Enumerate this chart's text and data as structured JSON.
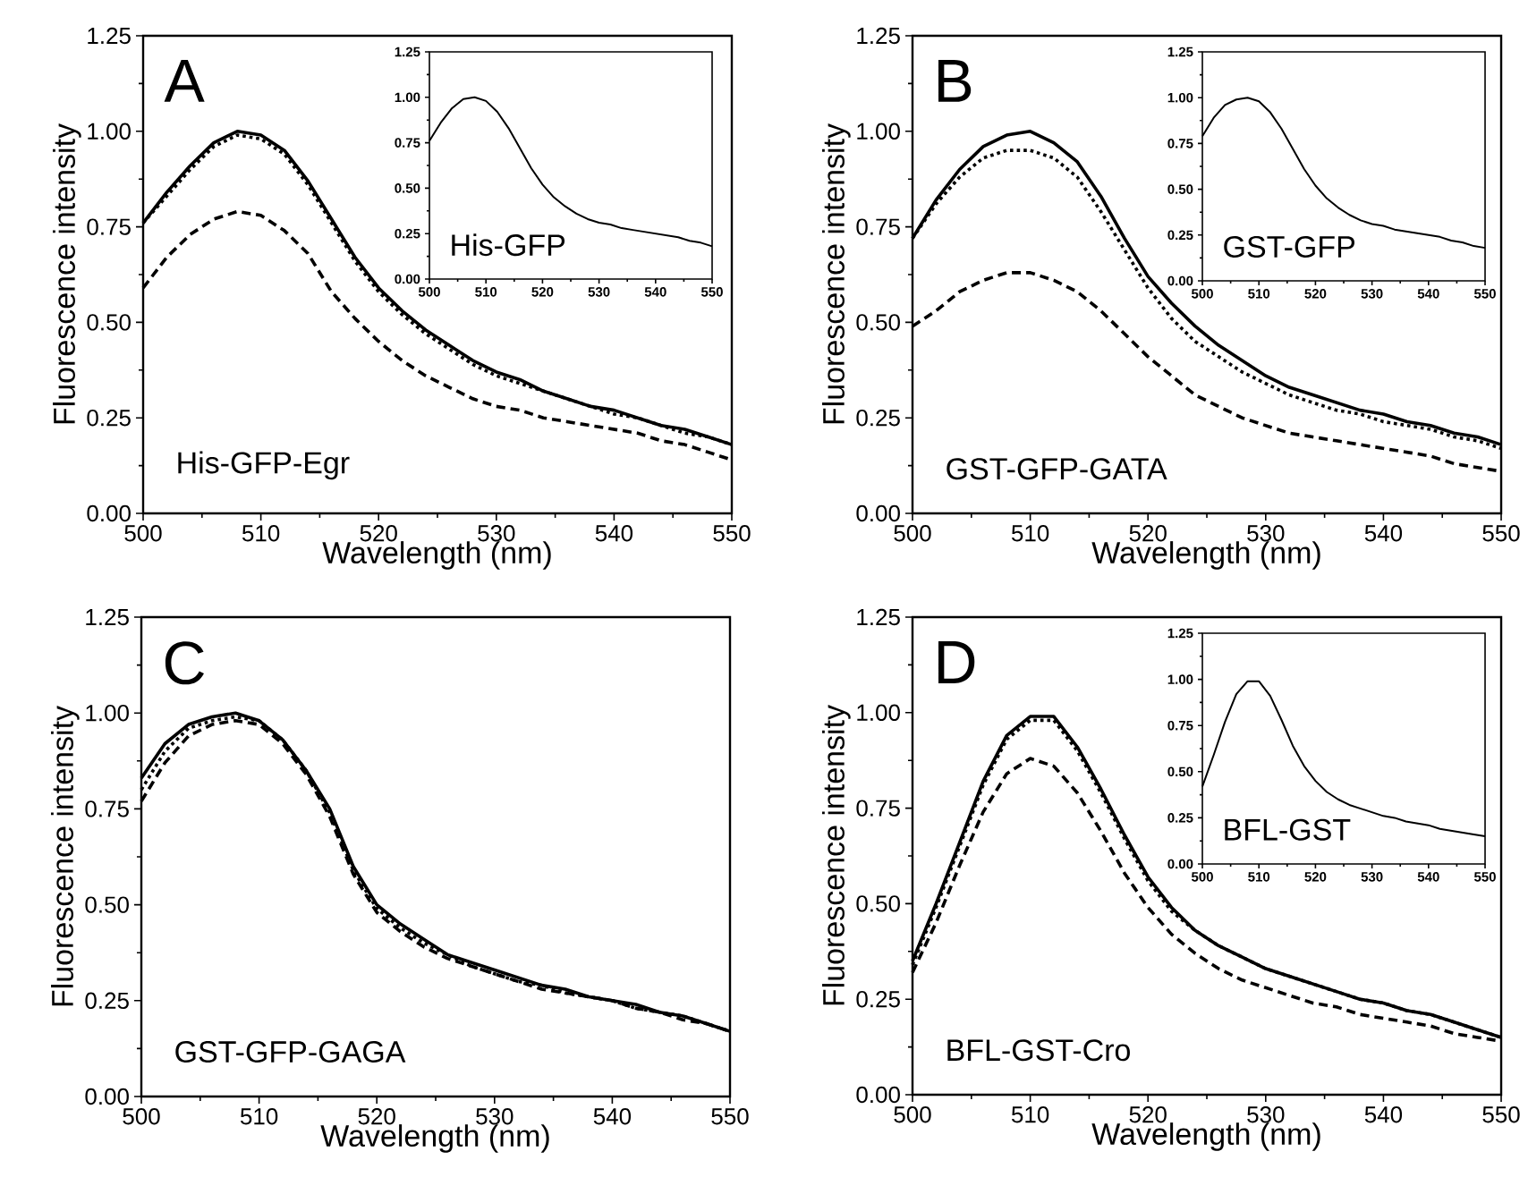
{
  "chart_data": [
    {
      "type": "line",
      "xlabel": "Wavelength (nm)",
      "ylabel": "Fluorescence intensity",
      "annotations": [
        "A",
        "His-GFP-Egr"
      ],
      "xlim": [
        500,
        550
      ],
      "ylim": [
        0,
        1.25
      ],
      "xticks": [
        500,
        510,
        520,
        530,
        540,
        550
      ],
      "yticks": [
        {
          "value": 0,
          "label": "0.00"
        },
        {
          "value": 0.25,
          "label": "0.25"
        },
        {
          "value": 0.5,
          "label": "0.50"
        },
        {
          "value": 0.75,
          "label": "0.75"
        },
        {
          "value": 1,
          "label": "1.00"
        },
        {
          "value": 1.25,
          "label": "1.25"
        }
      ],
      "x": [
        500,
        502,
        504,
        506,
        508,
        510,
        512,
        514,
        516,
        518,
        520,
        522,
        524,
        526,
        528,
        530,
        532,
        534,
        536,
        538,
        540,
        542,
        544,
        546,
        548,
        550
      ],
      "series": [
        {
          "color": "#000000",
          "line_style": "solid",
          "values": [
            0.76,
            0.84,
            0.91,
            0.97,
            1.0,
            0.99,
            0.95,
            0.87,
            0.77,
            0.67,
            0.59,
            0.53,
            0.48,
            0.44,
            0.4,
            0.37,
            0.35,
            0.32,
            0.3,
            0.28,
            0.27,
            0.25,
            0.23,
            0.22,
            0.2,
            0.18
          ]
        },
        {
          "color": "#000000",
          "line_style": "dotted",
          "values": [
            0.76,
            0.83,
            0.9,
            0.96,
            0.99,
            0.98,
            0.94,
            0.86,
            0.76,
            0.66,
            0.58,
            0.52,
            0.47,
            0.43,
            0.39,
            0.36,
            0.34,
            0.32,
            0.3,
            0.28,
            0.26,
            0.25,
            0.23,
            0.21,
            0.2,
            0.18
          ]
        },
        {
          "color": "#000000",
          "line_style": "dashed",
          "values": [
            0.59,
            0.67,
            0.73,
            0.77,
            0.79,
            0.78,
            0.74,
            0.68,
            0.58,
            0.51,
            0.45,
            0.4,
            0.36,
            0.33,
            0.3,
            0.28,
            0.27,
            0.25,
            0.24,
            0.23,
            0.22,
            0.21,
            0.19,
            0.18,
            0.16,
            0.14
          ]
        }
      ]
    },
    {
      "type": "line",
      "annotations": [
        "His-GFP"
      ],
      "xlim": [
        500,
        550
      ],
      "ylim": [
        0,
        1.25
      ],
      "xticks": [
        500,
        510,
        520,
        530,
        540,
        550
      ],
      "yticks": [
        {
          "value": 0,
          "label": "0.00"
        },
        {
          "value": 0.25,
          "label": "0.25"
        },
        {
          "value": 0.5,
          "label": "0.50"
        },
        {
          "value": 0.75,
          "label": "0.75"
        },
        {
          "value": 1,
          "label": "1.00"
        },
        {
          "value": 1.25,
          "label": "1.25"
        }
      ],
      "x": [
        500,
        502,
        504,
        506,
        508,
        510,
        512,
        514,
        516,
        518,
        520,
        522,
        524,
        526,
        528,
        530,
        532,
        534,
        536,
        538,
        540,
        542,
        544,
        546,
        548,
        550
      ],
      "series": [
        {
          "color": "#000000",
          "line_style": "solid",
          "values": [
            0.76,
            0.86,
            0.94,
            0.99,
            1.0,
            0.98,
            0.92,
            0.83,
            0.72,
            0.61,
            0.52,
            0.45,
            0.4,
            0.36,
            0.33,
            0.31,
            0.3,
            0.28,
            0.27,
            0.26,
            0.25,
            0.24,
            0.23,
            0.21,
            0.2,
            0.18
          ]
        }
      ]
    },
    {
      "type": "line",
      "xlabel": "Wavelength (nm)",
      "ylabel": "Fluorescence intensity",
      "annotations": [
        "B",
        "GST-GFP-GATA"
      ],
      "xlim": [
        500,
        550
      ],
      "ylim": [
        0,
        1.25
      ],
      "xticks": [
        500,
        510,
        520,
        530,
        540,
        550
      ],
      "yticks": [
        {
          "value": 0,
          "label": "0.00"
        },
        {
          "value": 0.25,
          "label": "0.25"
        },
        {
          "value": 0.5,
          "label": "0.50"
        },
        {
          "value": 0.75,
          "label": "0.75"
        },
        {
          "value": 1,
          "label": "1.00"
        },
        {
          "value": 1.25,
          "label": "1.25"
        }
      ],
      "x": [
        500,
        502,
        504,
        506,
        508,
        510,
        512,
        514,
        516,
        518,
        520,
        522,
        524,
        526,
        528,
        530,
        532,
        534,
        536,
        538,
        540,
        542,
        544,
        546,
        548,
        550
      ],
      "series": [
        {
          "color": "#000000",
          "line_style": "solid",
          "values": [
            0.72,
            0.82,
            0.9,
            0.96,
            0.99,
            1.0,
            0.97,
            0.92,
            0.83,
            0.72,
            0.62,
            0.55,
            0.49,
            0.44,
            0.4,
            0.36,
            0.33,
            0.31,
            0.29,
            0.27,
            0.26,
            0.24,
            0.23,
            0.21,
            0.2,
            0.18
          ]
        },
        {
          "color": "#000000",
          "line_style": "dotted",
          "values": [
            0.72,
            0.81,
            0.88,
            0.93,
            0.95,
            0.95,
            0.93,
            0.88,
            0.79,
            0.69,
            0.59,
            0.51,
            0.45,
            0.41,
            0.37,
            0.34,
            0.31,
            0.29,
            0.27,
            0.26,
            0.24,
            0.23,
            0.22,
            0.2,
            0.19,
            0.17
          ]
        },
        {
          "color": "#000000",
          "line_style": "dashed",
          "values": [
            0.49,
            0.53,
            0.58,
            0.61,
            0.63,
            0.63,
            0.61,
            0.58,
            0.53,
            0.47,
            0.41,
            0.36,
            0.31,
            0.28,
            0.25,
            0.23,
            0.21,
            0.2,
            0.19,
            0.18,
            0.17,
            0.16,
            0.15,
            0.13,
            0.12,
            0.11
          ]
        }
      ]
    },
    {
      "type": "line",
      "annotations": [
        "GST-GFP"
      ],
      "xlim": [
        500,
        550
      ],
      "ylim": [
        0,
        1.25
      ],
      "xticks": [
        500,
        510,
        520,
        530,
        540,
        550
      ],
      "yticks": [
        {
          "value": 0,
          "label": "0.00"
        },
        {
          "value": 0.25,
          "label": "0.25"
        },
        {
          "value": 0.5,
          "label": "0.50"
        },
        {
          "value": 0.75,
          "label": "0.75"
        },
        {
          "value": 1,
          "label": "1.00"
        },
        {
          "value": 1.25,
          "label": "1.25"
        }
      ],
      "x": [
        500,
        502,
        504,
        506,
        508,
        510,
        512,
        514,
        516,
        518,
        520,
        522,
        524,
        526,
        528,
        530,
        532,
        534,
        536,
        538,
        540,
        542,
        544,
        546,
        548,
        550
      ],
      "series": [
        {
          "color": "#000000",
          "line_style": "solid",
          "values": [
            0.79,
            0.89,
            0.96,
            0.99,
            1.0,
            0.98,
            0.92,
            0.83,
            0.72,
            0.61,
            0.52,
            0.45,
            0.4,
            0.36,
            0.33,
            0.31,
            0.3,
            0.28,
            0.27,
            0.26,
            0.25,
            0.24,
            0.22,
            0.21,
            0.19,
            0.18
          ]
        }
      ]
    },
    {
      "type": "line",
      "xlabel": "Wavelength (nm)",
      "ylabel": "Fluorescence intensity",
      "annotations": [
        "C",
        "GST-GFP-GAGA"
      ],
      "xlim": [
        500,
        550
      ],
      "ylim": [
        0,
        1.25
      ],
      "xticks": [
        500,
        510,
        520,
        530,
        540,
        550
      ],
      "yticks": [
        {
          "value": 0,
          "label": "0.00"
        },
        {
          "value": 0.25,
          "label": "0.25"
        },
        {
          "value": 0.5,
          "label": "0.50"
        },
        {
          "value": 0.75,
          "label": "0.75"
        },
        {
          "value": 1,
          "label": "1.00"
        },
        {
          "value": 1.25,
          "label": "1.25"
        }
      ],
      "x": [
        500,
        502,
        504,
        506,
        508,
        510,
        512,
        514,
        516,
        518,
        520,
        522,
        524,
        526,
        528,
        530,
        532,
        534,
        536,
        538,
        540,
        542,
        544,
        546,
        548,
        550
      ],
      "series": [
        {
          "color": "#000000",
          "line_style": "solid",
          "values": [
            0.83,
            0.92,
            0.97,
            0.99,
            1.0,
            0.98,
            0.93,
            0.85,
            0.75,
            0.6,
            0.5,
            0.45,
            0.41,
            0.37,
            0.35,
            0.33,
            0.31,
            0.29,
            0.28,
            0.26,
            0.25,
            0.24,
            0.22,
            0.21,
            0.19,
            0.17
          ]
        },
        {
          "color": "#000000",
          "line_style": "dotted",
          "values": [
            0.8,
            0.9,
            0.96,
            0.98,
            0.99,
            0.98,
            0.93,
            0.85,
            0.74,
            0.59,
            0.49,
            0.44,
            0.4,
            0.37,
            0.34,
            0.32,
            0.3,
            0.29,
            0.27,
            0.26,
            0.25,
            0.23,
            0.22,
            0.21,
            0.19,
            0.17
          ]
        },
        {
          "color": "#000000",
          "line_style": "dashed",
          "values": [
            0.77,
            0.87,
            0.94,
            0.97,
            0.98,
            0.97,
            0.92,
            0.84,
            0.73,
            0.58,
            0.48,
            0.43,
            0.39,
            0.36,
            0.34,
            0.32,
            0.3,
            0.28,
            0.27,
            0.26,
            0.25,
            0.23,
            0.22,
            0.2,
            0.19,
            0.17
          ]
        }
      ]
    },
    {
      "type": "line",
      "xlabel": "Wavelength (nm)",
      "ylabel": "Fluorescence intensity",
      "annotations": [
        "D",
        "BFL-GST-Cro"
      ],
      "xlim": [
        500,
        550
      ],
      "ylim": [
        0,
        1.25
      ],
      "xticks": [
        500,
        510,
        520,
        530,
        540,
        550
      ],
      "yticks": [
        {
          "value": 0,
          "label": "0.00"
        },
        {
          "value": 0.25,
          "label": "0.25"
        },
        {
          "value": 0.5,
          "label": "0.50"
        },
        {
          "value": 0.75,
          "label": "0.75"
        },
        {
          "value": 1,
          "label": "1.00"
        },
        {
          "value": 1.25,
          "label": "1.25"
        }
      ],
      "x": [
        500,
        502,
        504,
        506,
        508,
        510,
        512,
        514,
        516,
        518,
        520,
        522,
        524,
        526,
        528,
        530,
        532,
        534,
        536,
        538,
        540,
        542,
        544,
        546,
        548,
        550
      ],
      "series": [
        {
          "color": "#000000",
          "line_style": "solid",
          "values": [
            0.35,
            0.5,
            0.66,
            0.82,
            0.94,
            0.99,
            0.99,
            0.91,
            0.8,
            0.68,
            0.57,
            0.49,
            0.43,
            0.39,
            0.36,
            0.33,
            0.31,
            0.29,
            0.27,
            0.25,
            0.24,
            0.22,
            0.21,
            0.19,
            0.17,
            0.15
          ]
        },
        {
          "color": "#000000",
          "line_style": "dotted",
          "values": [
            0.34,
            0.49,
            0.65,
            0.81,
            0.93,
            0.98,
            0.98,
            0.9,
            0.79,
            0.67,
            0.56,
            0.48,
            0.43,
            0.39,
            0.36,
            0.33,
            0.31,
            0.29,
            0.27,
            0.25,
            0.24,
            0.22,
            0.21,
            0.19,
            0.17,
            0.15
          ]
        },
        {
          "color": "#000000",
          "line_style": "dashed",
          "values": [
            0.32,
            0.45,
            0.6,
            0.74,
            0.84,
            0.88,
            0.86,
            0.79,
            0.69,
            0.58,
            0.49,
            0.42,
            0.37,
            0.33,
            0.3,
            0.28,
            0.26,
            0.24,
            0.23,
            0.21,
            0.2,
            0.19,
            0.18,
            0.16,
            0.15,
            0.14
          ]
        }
      ]
    },
    {
      "type": "line",
      "annotations": [
        "BFL-GST"
      ],
      "xlim": [
        500,
        550
      ],
      "ylim": [
        0,
        1.25
      ],
      "xticks": [
        500,
        510,
        520,
        530,
        540,
        550
      ],
      "yticks": [
        {
          "value": 0,
          "label": "0.00"
        },
        {
          "value": 0.25,
          "label": "0.25"
        },
        {
          "value": 0.5,
          "label": "0.50"
        },
        {
          "value": 0.75,
          "label": "0.75"
        },
        {
          "value": 1,
          "label": "1.00"
        },
        {
          "value": 1.25,
          "label": "1.25"
        }
      ],
      "x": [
        500,
        502,
        504,
        506,
        508,
        510,
        512,
        514,
        516,
        518,
        520,
        522,
        524,
        526,
        528,
        530,
        532,
        534,
        536,
        538,
        540,
        542,
        544,
        546,
        548,
        550
      ],
      "series": [
        {
          "color": "#000000",
          "line_style": "solid",
          "values": [
            0.42,
            0.59,
            0.77,
            0.92,
            0.99,
            0.99,
            0.91,
            0.78,
            0.64,
            0.53,
            0.45,
            0.39,
            0.35,
            0.32,
            0.3,
            0.28,
            0.26,
            0.25,
            0.23,
            0.22,
            0.21,
            0.19,
            0.18,
            0.17,
            0.16,
            0.15
          ]
        }
      ]
    }
  ]
}
